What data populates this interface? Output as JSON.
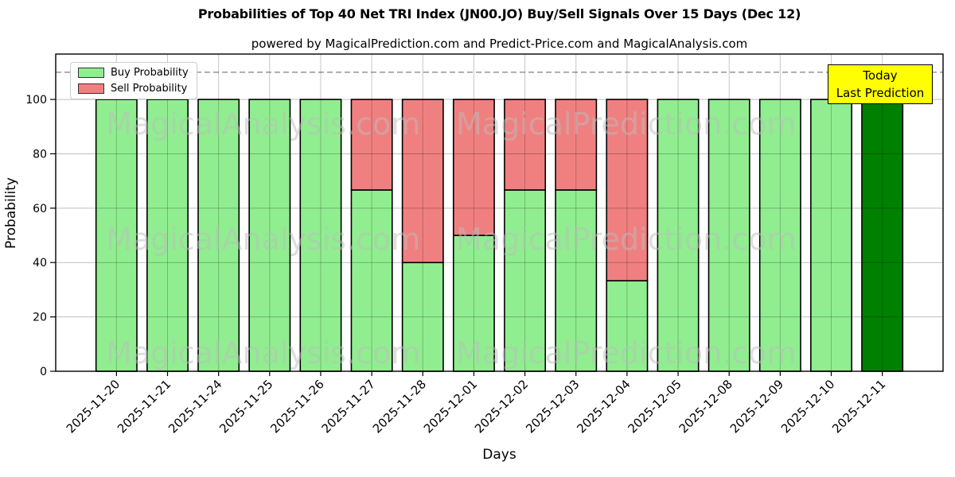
{
  "title": "Probabilities of Top 40 Net TRI Index (JN00.JO) Buy/Sell Signals Over 15 Days (Dec 12)",
  "subtitle": "powered by MagicalPrediction.com and Predict-Price.com and MagicalAnalysis.com",
  "legend": {
    "items": [
      {
        "label": "Buy Probability",
        "color": "#90EE90"
      },
      {
        "label": "Sell Probability",
        "color": "#F08080"
      }
    ]
  },
  "annotation": {
    "line1": "Today",
    "line2": "Last Prediction",
    "bg": "#ffff00"
  },
  "watermarks": {
    "left": "MagicalAnalysis.com",
    "right": "MagicalPrediction.com"
  },
  "chart_data": {
    "type": "bar",
    "stacked": true,
    "title": "Probabilities of Top 40 Net TRI Index (JN00.JO) Buy/Sell Signals Over 15 Days (Dec 12)",
    "xlabel": "Days",
    "ylabel": "Probability",
    "categories": [
      "2025-11-20",
      "2025-11-21",
      "2025-11-24",
      "2025-11-25",
      "2025-11-26",
      "2025-11-27",
      "2025-11-28",
      "2025-12-01",
      "2025-12-02",
      "2025-12-03",
      "2025-12-04",
      "2025-12-05",
      "2025-12-08",
      "2025-12-09",
      "2025-12-10",
      "2025-12-11"
    ],
    "series": [
      {
        "name": "Buy Probability",
        "color": "#90EE90",
        "values": [
          100,
          100,
          100,
          100,
          100,
          66.7,
          40,
          50,
          66.7,
          66.7,
          33.3,
          100,
          100,
          100,
          100,
          100
        ]
      },
      {
        "name": "Sell Probability",
        "color": "#F08080",
        "values": [
          0,
          0,
          0,
          0,
          0,
          33.3,
          60,
          50,
          33.3,
          33.3,
          66.7,
          0,
          0,
          0,
          0,
          0
        ]
      }
    ],
    "last_bar_color": "#008000",
    "yticks": [
      0,
      20,
      40,
      60,
      80,
      100
    ],
    "ylim": [
      0,
      116.7
    ],
    "dashed_line_y": 110,
    "grid": true,
    "legend_position": "upper left",
    "bar_edge_color": "#000000"
  }
}
